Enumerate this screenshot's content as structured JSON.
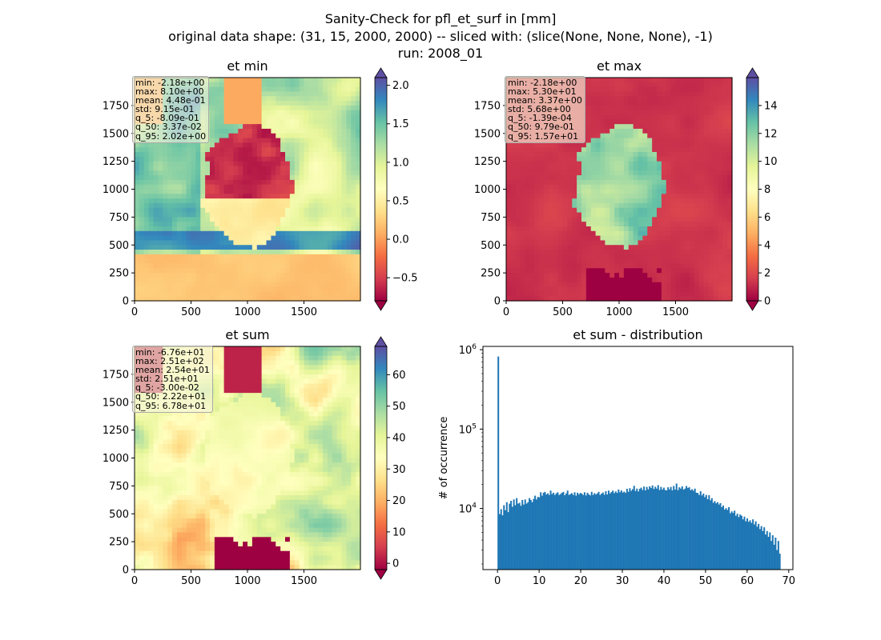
{
  "suptitle": {
    "line1": "Sanity-Check for pfl_et_surf in [mm]",
    "line2": "original data shape: (31, 15, 2000, 2000) -- sliced with: (slice(None, None, None), -1)",
    "line3": "run: 2008_01"
  },
  "colormap": "Spectral",
  "chart_data": [
    {
      "type": "heatmap",
      "title": "et min",
      "xlim": [
        0,
        2000
      ],
      "ylim": [
        0,
        2000
      ],
      "x_ticks": [
        0,
        500,
        1000,
        1500
      ],
      "y_ticks": [
        0,
        250,
        500,
        750,
        1000,
        1250,
        1500,
        1750
      ],
      "colorbar": {
        "vmin": -0.8,
        "vmax": 2.1,
        "ticks": [
          -0.5,
          0.0,
          0.5,
          1.0,
          1.5,
          2.0
        ],
        "tick_labels": [
          "−0.5",
          "0.0",
          "0.5",
          "1.0",
          "1.5",
          "2.0"
        ],
        "extend": "both"
      },
      "stats": {
        "min": "min: -2.18e+00",
        "max": "max: 8.10e+00",
        "mean": "mean: 4.48e-01",
        "std": "std: 9.15e-01",
        "q_5": "q_5: -8.09e-01",
        "q_50": "q_50: 3.37e-02",
        "q_95": "q_95: 2.02e+00"
      }
    },
    {
      "type": "heatmap",
      "title": "et max",
      "xlim": [
        0,
        2000
      ],
      "ylim": [
        0,
        2000
      ],
      "x_ticks": [
        0,
        500,
        1000,
        1500
      ],
      "y_ticks": [
        0,
        250,
        500,
        750,
        1000,
        1250,
        1500,
        1750
      ],
      "colorbar": {
        "vmin": 0,
        "vmax": 16,
        "ticks": [
          0,
          2,
          4,
          6,
          8,
          10,
          12,
          14
        ],
        "tick_labels": [
          "0",
          "2",
          "4",
          "6",
          "8",
          "10",
          "12",
          "14"
        ],
        "extend": "both"
      },
      "stats": {
        "min": "min: -2.18e+00",
        "max": "max: 5.30e+01",
        "mean": "mean: 3.37e+00",
        "std": "std: 5.68e+00",
        "q_5": "q_5: -1.39e-04",
        "q_50": "q_50: 9.79e-01",
        "q_95": "q_95: 1.57e+01"
      }
    },
    {
      "type": "heatmap",
      "title": "et sum",
      "xlim": [
        0,
        2000
      ],
      "ylim": [
        0,
        2000
      ],
      "x_ticks": [
        0,
        500,
        1000,
        1500
      ],
      "y_ticks": [
        0,
        250,
        500,
        750,
        1000,
        1250,
        1500,
        1750
      ],
      "colorbar": {
        "vmin": -2,
        "vmax": 69,
        "ticks": [
          0,
          10,
          20,
          30,
          40,
          50,
          60
        ],
        "tick_labels": [
          "0",
          "10",
          "20",
          "30",
          "40",
          "50",
          "60"
        ],
        "extend": "both"
      },
      "stats": {
        "min": "min: -6.76e+01",
        "max": "max: 2.51e+02",
        "mean": "mean: 2.54e+01",
        "std": "std: 2.51e+01",
        "q_5": "q_5: -3.00e-02",
        "q_50": "q_50: 2.22e+01",
        "q_95": "q_95: 6.78e+01"
      }
    },
    {
      "type": "bar",
      "title": "et sum - distribution",
      "xlabel": "",
      "ylabel": "# of occurrence",
      "yscale": "log",
      "xlim": [
        -3.5,
        71
      ],
      "ylim": [
        1700,
        1100000
      ],
      "x_ticks": [
        0,
        10,
        20,
        30,
        40,
        50,
        60,
        70
      ],
      "y_ticks": [
        10000,
        100000,
        1000000
      ],
      "y_tick_labels": {
        "base": "10",
        "exponents": [
          "4",
          "5",
          "6"
        ]
      },
      "color": "#1f77b4",
      "bin_start": 0,
      "bin_width": 0.34,
      "counts": [
        820000,
        8500,
        9800,
        8200,
        11000,
        9500,
        12000,
        9000,
        11500,
        12500,
        10500,
        13000,
        11000,
        13500,
        11500,
        11800,
        10800,
        12800,
        11200,
        13000,
        11500,
        12000,
        13500,
        12800,
        12000,
        13200,
        14500,
        13000,
        14000,
        13800,
        16000,
        14500,
        15800,
        16200,
        15000,
        15500,
        14800,
        16800,
        15200,
        15800,
        14800,
        15500,
        16000,
        14800,
        15200,
        15800,
        16200,
        14700,
        15500,
        16800,
        14800,
        15200,
        15600,
        14800,
        16000,
        14500,
        15800,
        15000,
        15700,
        15400,
        14800,
        16000,
        14600,
        15800,
        15100,
        14600,
        16200,
        14800,
        15600,
        15000,
        15500,
        16200,
        14800,
        15400,
        15900,
        14900,
        16500,
        15000,
        16800,
        15500,
        16100,
        16800,
        15600,
        16400,
        15700,
        17300,
        16000,
        16900,
        15900,
        16300,
        15700,
        17700,
        16200,
        18000,
        16700,
        17500,
        19300,
        16600,
        17800,
        16400,
        17700,
        18300,
        17100,
        18900,
        16900,
        18700,
        17400,
        19000,
        18100,
        19500,
        17600,
        18800,
        17800,
        19700,
        17100,
        18700,
        17300,
        18300,
        17100,
        16900,
        18500,
        17400,
        18700,
        16900,
        19200,
        17300,
        20600,
        17000,
        18500,
        17800,
        19000,
        17300,
        17800,
        19200,
        18100,
        18500,
        17000,
        17500,
        16700,
        17800,
        15800,
        15700,
        14800,
        16500,
        14600,
        15400,
        13900,
        14800,
        13100,
        14700,
        12700,
        13500,
        11800,
        12400,
        11600,
        12000,
        11200,
        11700,
        10400,
        10900,
        9700,
        10100,
        9600,
        10400,
        8700,
        9200,
        8800,
        9400,
        8100,
        8600,
        7800,
        8400,
        8100,
        7300,
        7900,
        6900,
        7500,
        6800,
        7100,
        6600,
        7300,
        6300,
        6900,
        5900,
        6400,
        5500,
        6000,
        5200,
        5800,
        4700,
        5200,
        4400,
        5000,
        3900,
        4600,
        3500,
        4300,
        3000,
        3900,
        2700
      ]
    }
  ]
}
